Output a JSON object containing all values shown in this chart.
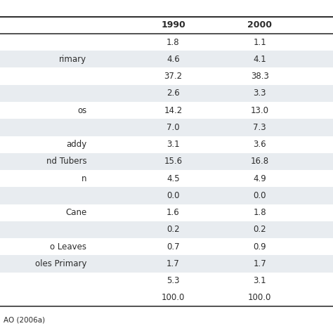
{
  "col_headers": [
    "1990",
    "2000"
  ],
  "rows": [
    {
      "label": "",
      "v1990": "1.8",
      "v2000": "1.1",
      "shaded": false
    },
    {
      "label": "rimary",
      "v1990": "4.6",
      "v2000": "4.1",
      "shaded": true
    },
    {
      "label": "",
      "v1990": "37.2",
      "v2000": "38.3",
      "shaded": false
    },
    {
      "label": "",
      "v1990": "2.6",
      "v2000": "3.3",
      "shaded": true
    },
    {
      "label": "os",
      "v1990": "14.2",
      "v2000": "13.0",
      "shaded": false
    },
    {
      "label": "",
      "v1990": "7.0",
      "v2000": "7.3",
      "shaded": true
    },
    {
      "label": "addy",
      "v1990": "3.1",
      "v2000": "3.6",
      "shaded": false
    },
    {
      "label": "nd Tubers",
      "v1990": "15.6",
      "v2000": "16.8",
      "shaded": true
    },
    {
      "label": "n",
      "v1990": "4.5",
      "v2000": "4.9",
      "shaded": false
    },
    {
      "label": "",
      "v1990": "0.0",
      "v2000": "0.0",
      "shaded": true
    },
    {
      "label": "Cane",
      "v1990": "1.6",
      "v2000": "1.8",
      "shaded": false
    },
    {
      "label": "",
      "v1990": "0.2",
      "v2000": "0.2",
      "shaded": true
    },
    {
      "label": "o Leaves",
      "v1990": "0.7",
      "v2000": "0.9",
      "shaded": false
    },
    {
      "label": "oles Primary",
      "v1990": "1.7",
      "v2000": "1.7",
      "shaded": true
    },
    {
      "label": "",
      "v1990": "5.3",
      "v2000": "3.1",
      "shaded": false
    },
    {
      "label": "",
      "v1990": "100.0",
      "v2000": "100.0",
      "shaded": false
    }
  ],
  "source": "AO (2006a)",
  "shaded_color": "#e8ecf0",
  "white_color": "#ffffff",
  "header_line_color": "#333333",
  "text_color": "#2b2b2b",
  "header_fontsize": 9,
  "cell_fontsize": 8.5,
  "source_fontsize": 7.5
}
